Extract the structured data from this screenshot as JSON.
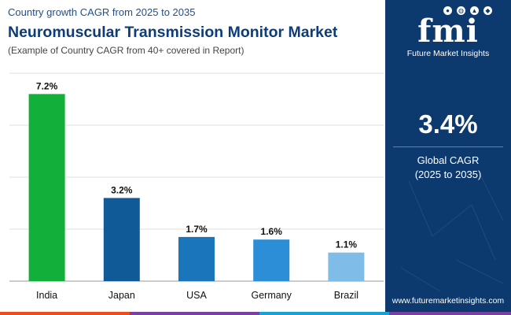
{
  "header": {
    "subtitle": "Country growth CAGR from 2025 to 2035",
    "title": "Neuromuscular Transmission Monitor Market",
    "note": "(Example of Country CAGR from 40+ covered in Report)"
  },
  "chart_data": {
    "type": "bar",
    "title": "Neuromuscular Transmission Monitor Market",
    "subtitle": "Country growth CAGR from 2025 to 2035",
    "xlabel": "",
    "ylabel": "",
    "categories": [
      "India",
      "Japan",
      "USA",
      "Germany",
      "Brazil"
    ],
    "values": [
      7.2,
      3.2,
      1.7,
      1.6,
      1.1
    ],
    "value_labels": [
      "7.2%",
      "3.2%",
      "1.7%",
      "1.6%",
      "1.1%"
    ],
    "colors": [
      "#12b03a",
      "#0f5a97",
      "#1b75ba",
      "#2d8ed8",
      "#7fbce8"
    ],
    "ylim": [
      0,
      8
    ],
    "grid": true,
    "legend": "none"
  },
  "sidebar": {
    "logo_text": "Future Market Insights",
    "logo_mark": "fmi",
    "cagr_value": "3.4%",
    "cagr_label": "Global CAGR",
    "cagr_period": "(2025 to 2035)",
    "website": "www.futuremarketinsights.com"
  },
  "colors": {
    "panel": "#0d3a6e",
    "title": "#0d3d78",
    "stripe": [
      "#e94e1b",
      "#7a3fa0",
      "#17a2d6",
      "#7a3fa0"
    ]
  }
}
